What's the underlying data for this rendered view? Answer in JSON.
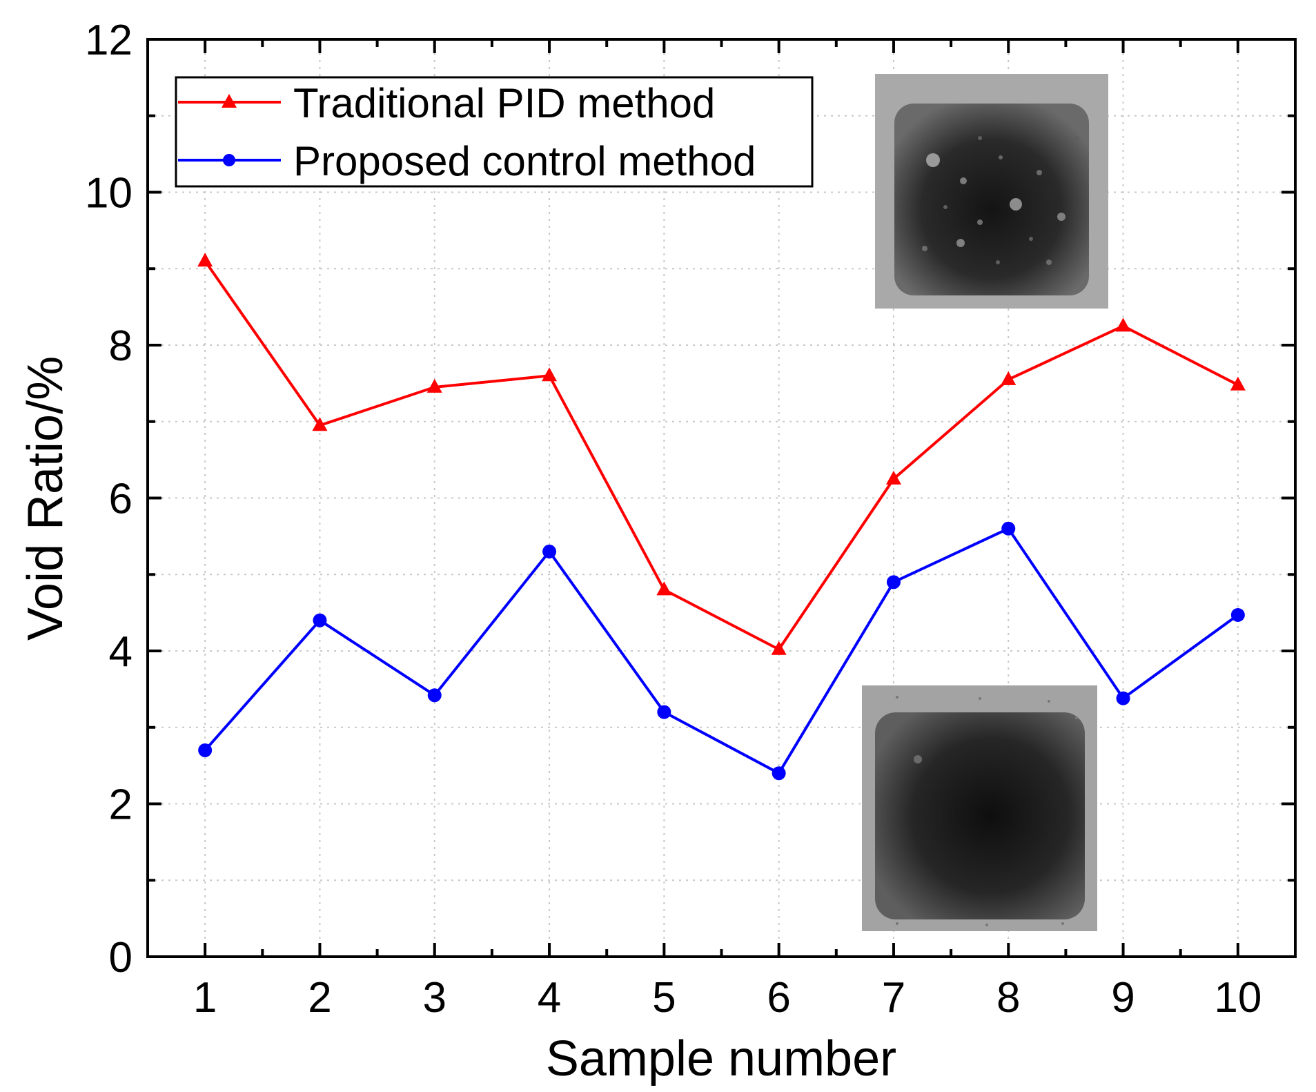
{
  "chart_data": {
    "type": "line",
    "xlabel": "Sample number",
    "ylabel": "Void Ratio/%",
    "categories": [
      "1",
      "2",
      "3",
      "4",
      "5",
      "6",
      "7",
      "8",
      "9",
      "10"
    ],
    "x": [
      1,
      2,
      3,
      4,
      5,
      6,
      7,
      8,
      9,
      10
    ],
    "xlim": [
      0.5,
      10.5
    ],
    "ylim": [
      0,
      12
    ],
    "y_ticks": [
      0,
      2,
      4,
      6,
      8,
      10,
      12
    ],
    "y_tick_labels": [
      "0",
      "2",
      "4",
      "6",
      "8",
      "10",
      "12"
    ],
    "grid": true,
    "legend_position": "top-left",
    "series": [
      {
        "name": "Traditional PID method",
        "color": "#ff0000",
        "marker": "triangle",
        "values": [
          9.1,
          6.95,
          7.45,
          7.6,
          4.8,
          4.02,
          6.25,
          7.55,
          8.25,
          7.48
        ]
      },
      {
        "name": "Proposed control method",
        "color": "#0000ff",
        "marker": "circle",
        "values": [
          2.7,
          4.4,
          3.42,
          5.3,
          3.2,
          2.4,
          4.9,
          5.6,
          3.38,
          4.47
        ]
      }
    ],
    "inset_images": [
      {
        "name": "x-ray-pid",
        "description_icon": "xray-many-voids-image"
      },
      {
        "name": "x-ray-proposed",
        "description_icon": "xray-few-voids-image"
      }
    ]
  }
}
